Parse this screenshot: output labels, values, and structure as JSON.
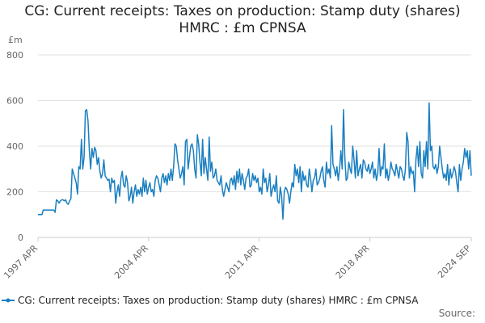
{
  "chart_data": {
    "type": "line",
    "title": "CG: Current receipts: Taxes on production: Stamp duty (shares) HMRC : £m CPNSA",
    "y_axis_label": "£m",
    "source": "Source:",
    "categories": [
      "1997 APR",
      null,
      null,
      null,
      null,
      null,
      null,
      null,
      null,
      null,
      null,
      null,
      null,
      null,
      null,
      null,
      null,
      null,
      null,
      null,
      null,
      null,
      null,
      null,
      null,
      null,
      null,
      null,
      null,
      null,
      null,
      null,
      null,
      null,
      null,
      null,
      null,
      null,
      null,
      null,
      null,
      null,
      null,
      null,
      null,
      null,
      null,
      null,
      null,
      null,
      null,
      null,
      null,
      null,
      null,
      null,
      null,
      null,
      null,
      null,
      null,
      null,
      null,
      null,
      null,
      null,
      null,
      null,
      null,
      null,
      null,
      null,
      null,
      null,
      null,
      null,
      null,
      null,
      null,
      null,
      null,
      null,
      null,
      null,
      "2004 APR",
      null,
      null,
      null,
      null,
      null,
      null,
      null,
      null,
      null,
      null,
      null,
      null,
      null,
      null,
      null,
      null,
      null,
      null,
      null,
      null,
      null,
      null,
      null,
      null,
      null,
      null,
      null,
      null,
      null,
      null,
      null,
      null,
      null,
      null,
      null,
      null,
      null,
      null,
      null,
      null,
      null,
      null,
      null,
      null,
      null,
      null,
      null,
      null,
      null,
      null,
      null,
      null,
      null,
      null,
      null,
      null,
      null,
      null,
      null,
      null,
      null,
      null,
      null,
      null,
      null,
      null,
      null,
      null,
      null,
      null,
      null,
      null,
      null,
      null,
      null,
      null,
      null,
      null,
      null,
      null,
      null,
      null,
      null,
      "2011 APR",
      null,
      null,
      null,
      null,
      null,
      null,
      null,
      null,
      null,
      null,
      null,
      null,
      null,
      null,
      null,
      null,
      null,
      null,
      null,
      null,
      null,
      null,
      null,
      null,
      null,
      null,
      null,
      null,
      null,
      null,
      null,
      null,
      null,
      null,
      null,
      null,
      null,
      null,
      null,
      null,
      null,
      null,
      null,
      null,
      null,
      null,
      null,
      null,
      null,
      null,
      null,
      null,
      null,
      null,
      null,
      null,
      null,
      null,
      null,
      null,
      null,
      null,
      null,
      null,
      null,
      null,
      null,
      null,
      null,
      null,
      null,
      null,
      null,
      null,
      null,
      null,
      null,
      null,
      null,
      null,
      null,
      null,
      null,
      "2018 APR",
      null,
      null,
      null,
      null,
      null,
      null,
      null,
      null,
      null,
      null,
      null,
      null,
      null,
      null,
      null,
      null,
      null,
      null,
      null,
      null,
      null,
      null,
      null,
      null,
      null,
      null,
      null,
      null,
      null,
      null,
      null,
      null,
      null,
      null,
      null,
      null,
      null,
      null,
      null,
      null,
      null,
      null,
      null,
      null,
      null,
      null,
      null,
      null,
      null,
      null,
      null,
      null,
      null,
      null,
      null,
      null,
      null,
      null,
      null,
      null,
      null,
      null,
      null,
      null,
      null,
      null,
      null,
      null,
      null,
      null,
      null,
      null,
      null,
      null,
      null,
      null,
      "2024 SEP"
    ],
    "series": [
      {
        "name": "CG: Current receipts: Taxes on production: Stamp duty (shares) HMRC : £m CPNSA",
        "color": "#1a7fc1",
        "values": [
          100,
          100,
          100,
          100,
          120,
          120,
          120,
          120,
          120,
          120,
          120,
          120,
          120,
          110,
          165,
          160,
          150,
          160,
          165,
          165,
          160,
          165,
          150,
          145,
          160,
          170,
          300,
          280,
          260,
          240,
          190,
          310,
          300,
          430,
          300,
          350,
          555,
          560,
          510,
          380,
          300,
          390,
          350,
          395,
          380,
          320,
          350,
          290,
          260,
          280,
          340,
          270,
          260,
          250,
          255,
          200,
          260,
          240,
          250,
          150,
          200,
          230,
          180,
          260,
          290,
          230,
          220,
          270,
          240,
          160,
          180,
          220,
          150,
          200,
          230,
          180,
          210,
          190,
          220,
          180,
          260,
          200,
          250,
          190,
          220,
          240,
          200,
          210,
          180,
          250,
          270,
          260,
          230,
          200,
          260,
          280,
          240,
          270,
          230,
          280,
          250,
          300,
          250,
          310,
          410,
          400,
          340,
          300,
          260,
          280,
          310,
          230,
          420,
          430,
          300,
          350,
          400,
          410,
          380,
          300,
          260,
          450,
          410,
          330,
          270,
          430,
          280,
          350,
          300,
          250,
          440,
          290,
          330,
          260,
          270,
          300,
          250,
          240,
          230,
          270,
          210,
          180,
          210,
          240,
          220,
          200,
          250,
          260,
          230,
          270,
          210,
          290,
          240,
          300,
          230,
          280,
          250,
          210,
          260,
          270,
          300,
          220,
          230,
          280,
          250,
          270,
          240,
          260,
          200,
          220,
          190,
          300,
          240,
          260,
          200,
          230,
          280,
          180,
          210,
          230,
          200,
          270,
          160,
          150,
          220,
          180,
          80,
          200,
          220,
          210,
          190,
          150,
          200,
          240,
          220,
          320,
          270,
          300,
          240,
          310,
          200,
          290,
          250,
          270,
          230,
          220,
          300,
          260,
          200,
          250,
          260,
          300,
          230,
          240,
          260,
          290,
          310,
          250,
          220,
          330,
          280,
          300,
          260,
          490,
          320,
          300,
          270,
          310,
          250,
          300,
          380,
          300,
          560,
          350,
          250,
          260,
          330,
          300,
          280,
          400,
          340,
          260,
          380,
          270,
          300,
          320,
          260,
          340,
          330,
          300,
          290,
          320,
          280,
          300,
          330,
          260,
          300,
          250,
          280,
          390,
          270,
          310,
          300,
          410,
          260,
          300,
          250,
          280,
          330,
          300,
          290,
          270,
          320,
          290,
          260,
          310,
          300,
          270,
          250,
          300,
          460,
          420,
          260,
          310,
          280,
          290,
          200,
          340,
          400,
          310,
          420,
          280,
          260,
          380,
          310,
          420,
          300,
          590,
          380,
          400,
          310,
          300,
          320,
          280,
          310,
          400,
          350,
          300,
          260,
          280,
          250,
          320,
          230,
          300,
          260,
          280,
          310,
          290,
          240,
          200,
          320,
          250,
          300,
          330,
          390,
          350,
          380,
          300,
          380,
          270
        ]
      }
    ],
    "ylim": [
      0,
      800
    ],
    "yticks": [
      0,
      200,
      400,
      600,
      800
    ],
    "grid": true
  }
}
